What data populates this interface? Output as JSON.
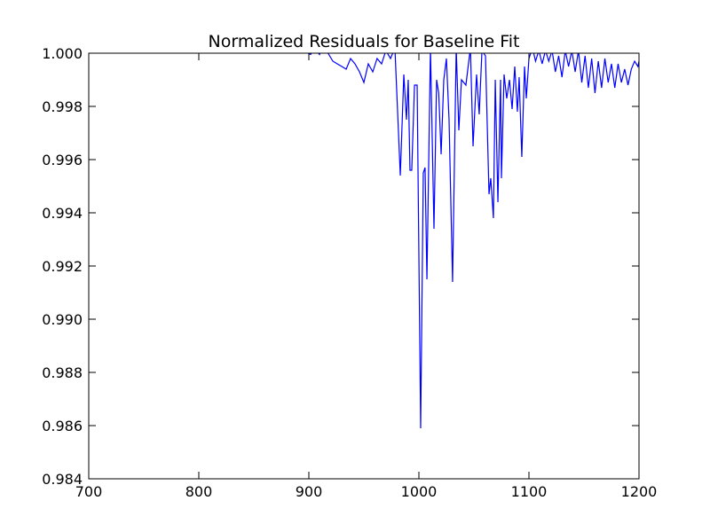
{
  "chart_data": {
    "type": "line",
    "title": "Normalized Residuals for Baseline Fit",
    "color": "#0000ff",
    "xlim": [
      700,
      1200
    ],
    "ylim": [
      0.984,
      1.0
    ],
    "xticks": [
      700,
      800,
      900,
      1000,
      1100,
      1200
    ],
    "yticks": [
      0.984,
      0.986,
      0.988,
      {
        "value": 0.99,
        "label": "0.990"
      },
      0.992,
      0.994,
      0.996,
      0.998,
      {
        "value": 1.0,
        "label": "1.000"
      }
    ],
    "grid": false,
    "x": [
      850,
      870,
      885,
      895,
      901.6,
      905,
      909.7,
      913,
      917.7,
      921.8,
      925.8,
      930,
      933.9,
      937.9,
      941.9,
      946,
      950,
      954,
      958.1,
      962,
      966.1,
      970,
      974.2,
      978.2,
      983.1,
      986.3,
      988.7,
      990.3,
      991.9,
      993.5,
      996,
      998.4,
      1001.6,
      1004,
      1005.6,
      1007.3,
      1010.5,
      1013.7,
      1016.1,
      1018,
      1020.2,
      1022.6,
      1025,
      1027.4,
      1030.6,
      1033.9,
      1036.3,
      1038.7,
      1042.7,
      1046.8,
      1049.2,
      1052.4,
      1054.8,
      1057.3,
      1060.5,
      1063.7,
      1065.3,
      1067.7,
      1069.4,
      1071.8,
      1074.2,
      1075,
      1077.4,
      1079.8,
      1082.3,
      1084.7,
      1087.1,
      1089.5,
      1091.1,
      1093.5,
      1096,
      1097.6,
      1100,
      1103.2,
      1106,
      1109,
      1112,
      1115,
      1118,
      1121,
      1124,
      1127,
      1130,
      1133,
      1136,
      1139,
      1142,
      1145,
      1148,
      1151,
      1154,
      1157,
      1160,
      1163,
      1166,
      1169,
      1172,
      1175,
      1178,
      1181,
      1184,
      1187,
      1190,
      1193,
      1196,
      1199,
      1200
    ],
    "values": [
      1.0004,
      1.0001,
      1.0003,
      1.0001,
      0.99995,
      1.0002,
      0.99995,
      1.0003,
      0.99998,
      0.9997,
      0.9996,
      0.9995,
      0.9994,
      0.9998,
      0.9996,
      0.9993,
      0.9989,
      0.9996,
      0.9993,
      0.9998,
      0.9996,
      1.0001,
      0.9998,
      1.0002,
      0.9954,
      0.9992,
      0.9975,
      0.999,
      0.9956,
      0.9956,
      0.9988,
      0.9988,
      0.9859,
      0.9955,
      0.9957,
      0.9915,
      1.0002,
      0.9934,
      0.999,
      0.9985,
      0.9962,
      0.999,
      0.9998,
      0.9975,
      0.9914,
      1.0002,
      0.9971,
      0.999,
      0.9988,
      1.0002,
      0.9965,
      0.9992,
      0.9977,
      1.0001,
      0.9999,
      0.9947,
      0.9953,
      0.9938,
      0.999,
      0.9944,
      0.999,
      0.9953,
      0.9992,
      0.9983,
      0.999,
      0.9979,
      0.9995,
      0.9978,
      0.9991,
      0.9961,
      0.9995,
      0.9983,
      0.9998,
      1.0002,
      0.9997,
      1.0001,
      0.9996,
      1.0001,
      0.9997,
      1.0001,
      0.9993,
      0.9999,
      0.9991,
      1.0001,
      0.9995,
      1.0001,
      0.9993,
      1.0001,
      0.9989,
      0.9999,
      0.9987,
      0.9998,
      0.9985,
      0.9997,
      0.9987,
      0.9998,
      0.9989,
      0.9996,
      0.9987,
      0.9996,
      0.9989,
      0.9994,
      0.9988,
      0.9994,
      0.9997,
      0.9995,
      0.9997
    ]
  }
}
